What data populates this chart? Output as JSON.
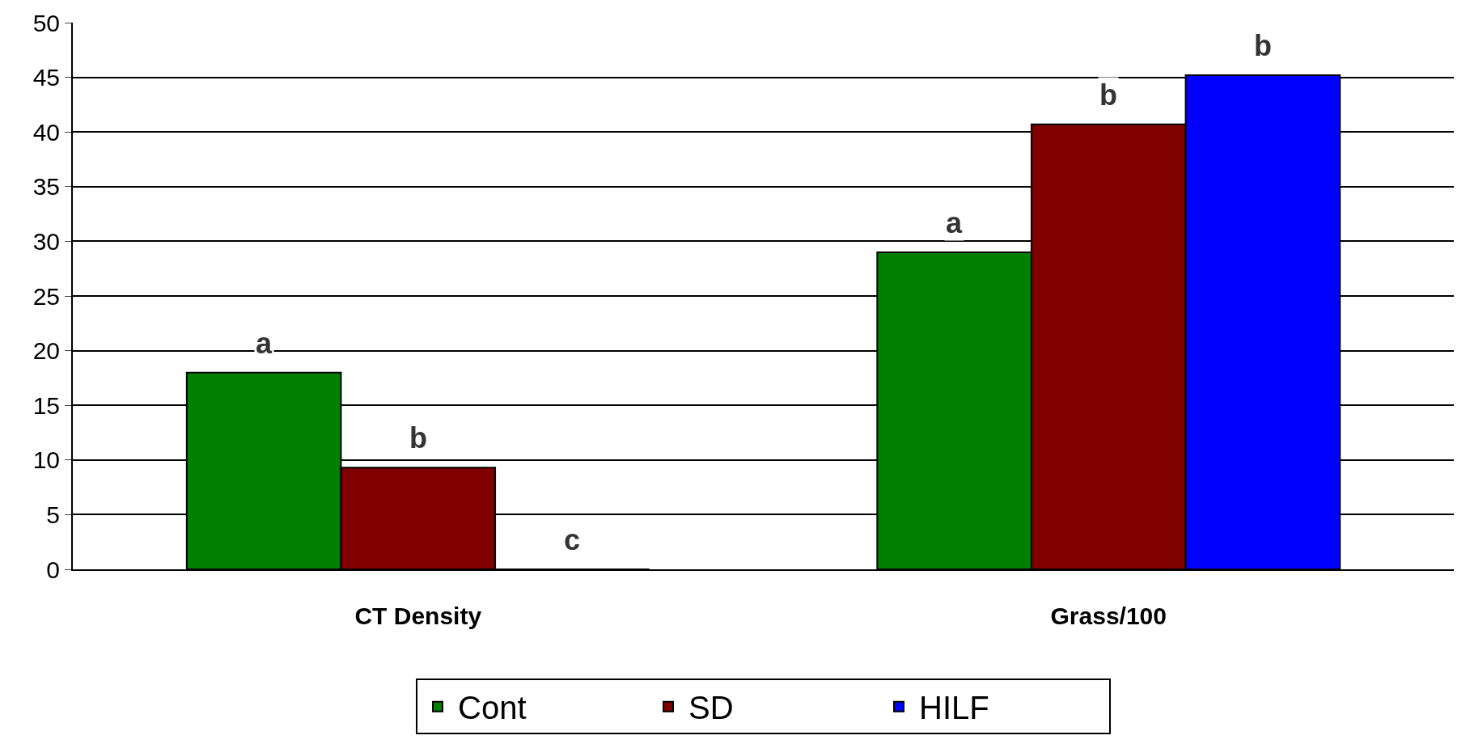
{
  "chart_data": {
    "type": "bar",
    "categories": [
      "CT Density",
      "Grass/100"
    ],
    "series": [
      {
        "name": "Cont",
        "color": "#008000",
        "values": [
          18,
          29
        ]
      },
      {
        "name": "SD",
        "color": "#800000",
        "values": [
          9.3,
          40.7
        ]
      },
      {
        "name": "HILF",
        "color": "#0000ff",
        "values": [
          0,
          45.2
        ]
      }
    ],
    "ylim": [
      0,
      50
    ],
    "yticks": [
      0,
      5,
      10,
      15,
      20,
      25,
      30,
      35,
      40,
      45,
      50
    ],
    "grid": "y",
    "legend": "bottom",
    "annotations": [
      "a",
      "b",
      "c",
      "a",
      "b",
      "b"
    ]
  }
}
